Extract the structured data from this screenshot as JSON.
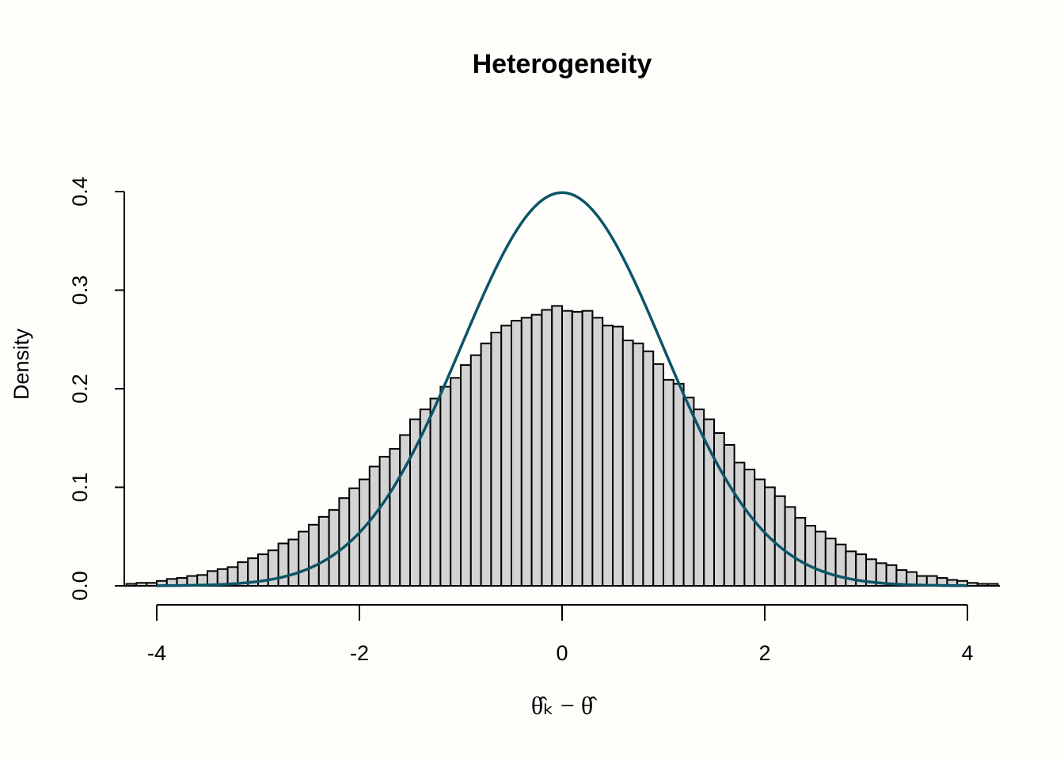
{
  "chart_data": {
    "type": "bar",
    "title": "Heterogeneity",
    "xlabel": "θ̂ₖ − θ̂",
    "ylabel": "Density",
    "xlim": [
      -4.32,
      4.32
    ],
    "ylim": [
      0,
      0.4
    ],
    "grid": false,
    "x_ticks": [
      -4,
      -2,
      0,
      2,
      4
    ],
    "x_tick_labels": [
      "-4",
      "-2",
      "0",
      "2",
      "4"
    ],
    "y_ticks": [
      0,
      0.1,
      0.2,
      0.3,
      0.4
    ],
    "y_tick_labels": [
      "0.0",
      "0.1",
      "0.2",
      "0.3",
      "0.4"
    ],
    "histogram": {
      "bin_start": -4.3,
      "bin_width": 0.1,
      "fill": "#d3d3d3",
      "values": [
        0.002,
        0.003,
        0.003,
        0.005,
        0.007,
        0.008,
        0.01,
        0.011,
        0.015,
        0.017,
        0.019,
        0.024,
        0.028,
        0.032,
        0.036,
        0.043,
        0.047,
        0.055,
        0.062,
        0.07,
        0.077,
        0.089,
        0.099,
        0.108,
        0.121,
        0.131,
        0.139,
        0.153,
        0.169,
        0.179,
        0.19,
        0.202,
        0.211,
        0.224,
        0.234,
        0.246,
        0.257,
        0.264,
        0.269,
        0.272,
        0.275,
        0.28,
        0.284,
        0.279,
        0.278,
        0.279,
        0.272,
        0.264,
        0.263,
        0.249,
        0.246,
        0.238,
        0.225,
        0.209,
        0.205,
        0.191,
        0.179,
        0.169,
        0.155,
        0.143,
        0.125,
        0.118,
        0.108,
        0.1,
        0.091,
        0.08,
        0.069,
        0.061,
        0.055,
        0.048,
        0.042,
        0.035,
        0.032,
        0.027,
        0.023,
        0.021,
        0.016,
        0.014,
        0.01,
        0.01,
        0.008,
        0.006,
        0.005,
        0.003,
        0.002,
        0.002
      ]
    },
    "curve": {
      "type": "normal-density",
      "mean": 0,
      "sd": 1,
      "xrange": [
        -4,
        4
      ],
      "color": "#0c5468"
    }
  }
}
